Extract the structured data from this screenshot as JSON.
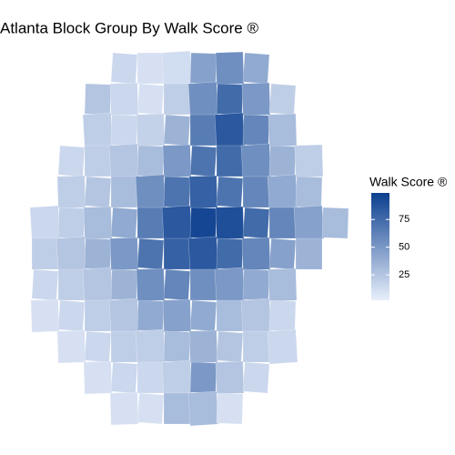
{
  "chart_data": {
    "type": "choropleth",
    "title": "Atlanta Block Group By Walk Score ®",
    "legend_title": "Walk Score ®",
    "low_color": "#e8effb",
    "high_color": "#0b3f8f",
    "limits": [
      2,
      99
    ],
    "ticks": [
      25,
      50,
      75
    ],
    "grid": [
      [
        null,
        null,
        null,
        15,
        10,
        12,
        45,
        55,
        40,
        null,
        null,
        null
      ],
      [
        null,
        null,
        25,
        15,
        10,
        20,
        55,
        75,
        50,
        20,
        null,
        null
      ],
      [
        null,
        null,
        20,
        15,
        18,
        35,
        65,
        85,
        60,
        30,
        null,
        null
      ],
      [
        null,
        15,
        20,
        25,
        30,
        50,
        70,
        75,
        55,
        35,
        20,
        null
      ],
      [
        null,
        20,
        25,
        30,
        55,
        70,
        80,
        70,
        60,
        40,
        30,
        null
      ],
      [
        15,
        20,
        30,
        40,
        65,
        85,
        95,
        90,
        75,
        60,
        45,
        30
      ],
      [
        20,
        25,
        35,
        50,
        70,
        80,
        85,
        75,
        60,
        45,
        35,
        null
      ],
      [
        15,
        20,
        25,
        35,
        55,
        60,
        55,
        50,
        40,
        30,
        null,
        null
      ],
      [
        10,
        15,
        20,
        25,
        40,
        45,
        40,
        30,
        25,
        15,
        null,
        null
      ],
      [
        null,
        10,
        15,
        20,
        20,
        30,
        35,
        25,
        20,
        15,
        null,
        null
      ],
      [
        null,
        null,
        10,
        15,
        15,
        20,
        50,
        25,
        15,
        null,
        null,
        null
      ],
      [
        null,
        null,
        null,
        10,
        10,
        30,
        30,
        10,
        null,
        null,
        null,
        null
      ]
    ]
  }
}
